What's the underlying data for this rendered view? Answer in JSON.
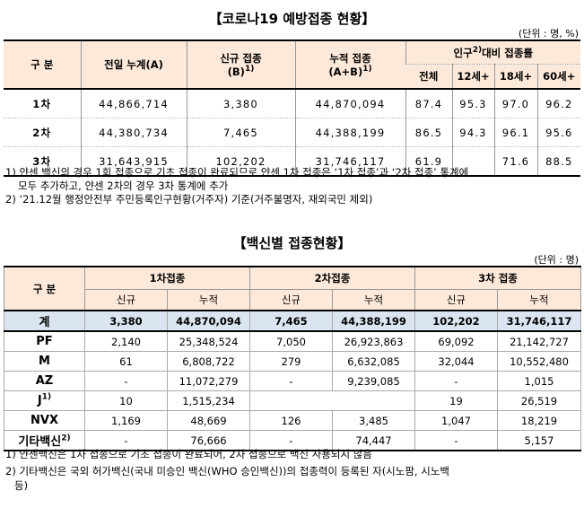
{
  "table1": {
    "title": "【코로나19 예방접종 현황】",
    "unit": "(단위 : 명, %)",
    "headers": {
      "gubun": "구 분",
      "prev_total": "전일 누계(A)",
      "new_label": "신규 접종",
      "new_sub": "(B)",
      "new_sup": "1)",
      "cum_label": "누적 접종",
      "cum_sub": "(A+B)",
      "cum_sup": "1)",
      "pop_pre": "인구",
      "pop_sup": "2)",
      "pop_post": "대비 접종률",
      "pop_all": "전체",
      "pop_12": "12세+",
      "pop_18": "18세+",
      "pop_60": "60세+"
    },
    "rows": [
      {
        "label": "1차",
        "prev": "44,866,714",
        "new": "3,380",
        "cum": "44,870,094",
        "all": "87.4",
        "a12": "95.3",
        "a18": "97.0",
        "a60": "96.2"
      },
      {
        "label": "2차",
        "prev": "44,380,734",
        "new": "7,465",
        "cum": "44,388,199",
        "all": "86.5",
        "a12": "94.3",
        "a18": "96.1",
        "a60": "95.6"
      },
      {
        "label": "3차",
        "prev": "31,643,915",
        "new": "102,202",
        "cum": "31,746,117",
        "all": "61.9",
        "a12": "",
        "a18": "71.6",
        "a60": "88.5"
      }
    ],
    "notes": [
      "1) 얀센 백신의 경우 1회 접종으로 기초 접종이 완료되므로 얀센 1차 접종은 ‘1차 접종’과 ‘2차 접종’ 통계에",
      "모두 추가하고, 얀센 2차의 경우 3차 통계에 추가",
      "2) ‘21.12월 행정안전부 주민등록인구현황(거주자) 기준(거주불명자, 재외국민 제외)"
    ]
  },
  "table2": {
    "title": "【백신별 접종현황】",
    "unit": "(단위 : 명)",
    "headers": {
      "gubun": "구 분",
      "dose1": "1차접종",
      "dose2": "2차접종",
      "dose3": "3차 접종",
      "new": "신규",
      "cum": "누적"
    },
    "rows": [
      {
        "label": "계",
        "sup": "",
        "n1": "3,380",
        "c1": "44,870,094",
        "n2": "7,465",
        "c2": "44,388,199",
        "n3": "102,202",
        "c3": "31,746,117"
      },
      {
        "label": "PF",
        "sup": "",
        "n1": "2,140",
        "c1": "25,348,524",
        "n2": "7,050",
        "c2": "26,923,863",
        "n3": "69,092",
        "c3": "21,142,727"
      },
      {
        "label": "M",
        "sup": "",
        "n1": "61",
        "c1": "6,808,722",
        "n2": "279",
        "c2": "6,632,085",
        "n3": "32,044",
        "c3": "10,552,480"
      },
      {
        "label": "AZ",
        "sup": "",
        "n1": "-",
        "c1": "11,072,279",
        "n2": "-",
        "c2": "9,239,085",
        "n3": "-",
        "c3": "1,015"
      },
      {
        "label": "J",
        "sup": "1)",
        "n1": "10",
        "c1": "1,515,234",
        "n2": "",
        "c2": "",
        "n3": "19",
        "c3": "26,519"
      },
      {
        "label": "NVX",
        "sup": "",
        "n1": "1,169",
        "c1": "48,669",
        "n2": "126",
        "c2": "3,485",
        "n3": "1,047",
        "c3": "18,219"
      },
      {
        "label": "기타백신",
        "sup": "2)",
        "n1": "-",
        "c1": "76,666",
        "n2": "-",
        "c2": "74,447",
        "n3": "-",
        "c3": "5,157"
      }
    ],
    "notes": [
      "1) 얀센백신은 1차 접종으로 기초 접종이 완료되어, 2차 접종으로 백신 사용되지 않음",
      "2) 기타백신은 국외 허가백신(국내 미승인 백신(WHO 승인백신))의 접종력이 등록된 자(시노팜, 시노백",
      "등)"
    ]
  }
}
